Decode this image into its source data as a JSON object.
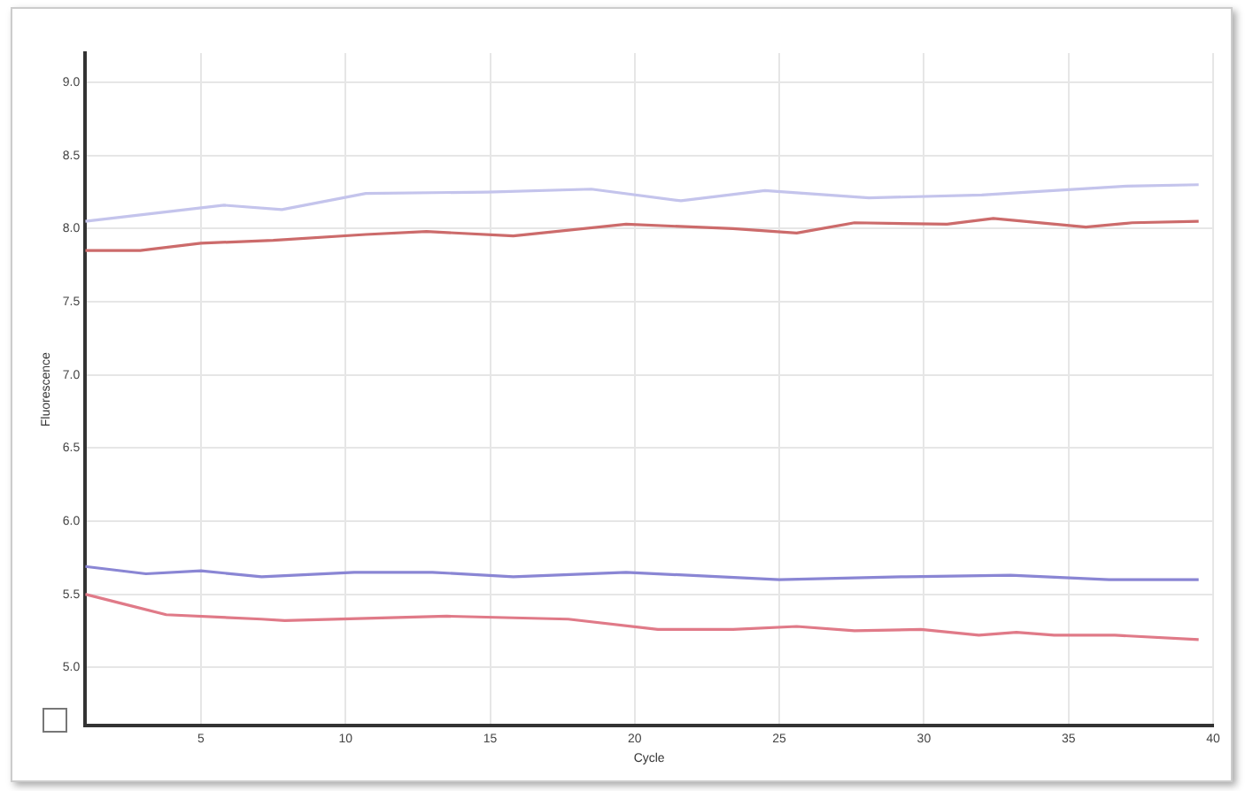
{
  "chart_data": {
    "type": "line",
    "xlabel": "Cycle",
    "ylabel": "Fluorescence",
    "xlim": [
      1,
      40
    ],
    "xticks": [
      5,
      10,
      15,
      20,
      25,
      30,
      35,
      40
    ],
    "ylim": [
      4.6,
      9.2
    ],
    "yticks": [
      {
        "value": 5,
        "label": "5.0"
      },
      5.5,
      {
        "value": 6,
        "label": "6.0"
      },
      6.5,
      {
        "value": 7,
        "label": "7.0"
      },
      7.5,
      {
        "value": 8,
        "label": "8.0"
      },
      8.5,
      {
        "value": 9,
        "label": "9.0"
      }
    ],
    "grid": true,
    "marker": "none",
    "line_style": "solid",
    "series": [
      {
        "color": "#c4c4ec",
        "x": [
          1,
          5.8,
          7.8,
          10.7,
          14.9,
          18.5,
          21.6,
          24.5,
          28.1,
          32,
          33.6,
          37,
          39.5
        ],
        "values": [
          8.05,
          8.16,
          8.13,
          8.24,
          8.25,
          8.27,
          8.19,
          8.26,
          8.21,
          8.23,
          8.25,
          8.29,
          8.3
        ]
      },
      {
        "color": "#cc6b6b",
        "x": [
          1,
          2.9,
          5,
          7.5,
          10.7,
          12.8,
          15.8,
          19.7,
          23.4,
          25.6,
          27.6,
          30.8,
          32.4,
          35.6,
          37.2,
          39.5
        ],
        "values": [
          7.85,
          7.85,
          7.9,
          7.92,
          7.96,
          7.98,
          7.95,
          8.03,
          8,
          7.97,
          8.04,
          8.03,
          8.07,
          8.01,
          8.04,
          8.05
        ]
      },
      {
        "color": "#8a86d4",
        "x": [
          1,
          3.1,
          5,
          7.1,
          10.3,
          13,
          15.8,
          19.7,
          25,
          29.4,
          33,
          36.4,
          39.5
        ],
        "values": [
          5.69,
          5.64,
          5.66,
          5.62,
          5.65,
          5.65,
          5.62,
          5.65,
          5.6,
          5.62,
          5.63,
          5.6,
          5.6
        ]
      },
      {
        "color": "#e07a88",
        "x": [
          1,
          2.6,
          3.8,
          7.1,
          7.9,
          13.5,
          17.7,
          20.8,
          23.4,
          25.6,
          27.6,
          29.9,
          31.9,
          33.2,
          34.5,
          36.6,
          39.5
        ],
        "values": [
          5.5,
          5.42,
          5.36,
          5.33,
          5.32,
          5.35,
          5.33,
          5.26,
          5.26,
          5.28,
          5.25,
          5.26,
          5.22,
          5.24,
          5.22,
          5.22,
          5.19
        ]
      }
    ]
  }
}
